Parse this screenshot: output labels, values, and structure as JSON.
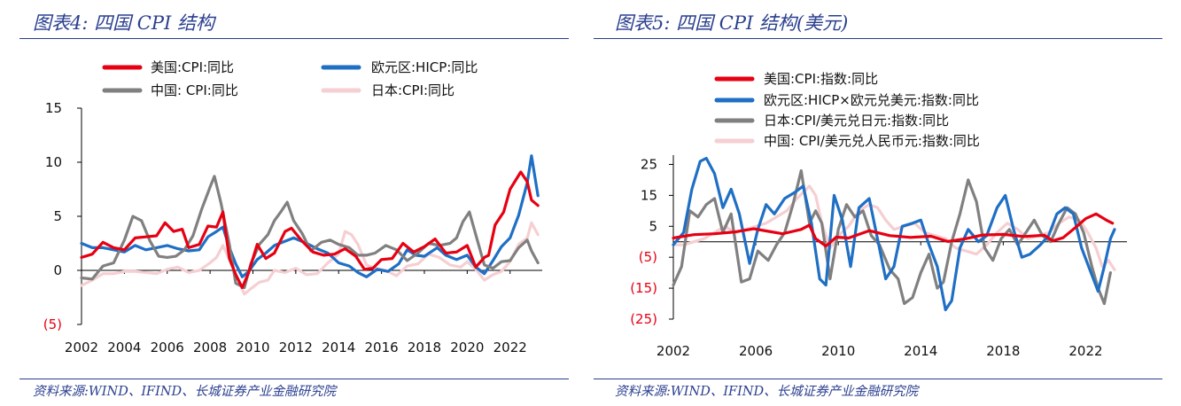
{
  "left_panel": {
    "title": "图表4:  四国 CPI 结构",
    "source": "资料来源:WIND、IFIND、长城证券产业金融研究院"
  },
  "right_panel": {
    "title": "图表5:  四国 CPI 结构(美元)",
    "source": "资料来源:WIND、IFIND、长城证券产业金融研究院"
  },
  "chart_data": [
    {
      "type": "line",
      "title": "",
      "xlabel": "",
      "ylabel": "",
      "xlim": [
        2002,
        2023.5
      ],
      "ylim": [
        -5,
        15
      ],
      "x_ticks": [
        2002,
        2004,
        2006,
        2008,
        2010,
        2012,
        2014,
        2016,
        2018,
        2020,
        2022
      ],
      "y_ticks": [
        15,
        10,
        5,
        0,
        -5
      ],
      "y_tick_labels": [
        "15",
        "10",
        "5",
        "0",
        "(5)"
      ],
      "legend_position": "top, two columns",
      "grid": false,
      "series": [
        {
          "name": "美国:CPI:同比",
          "color": "#e60012",
          "x": [
            2002,
            2002.5,
            2003,
            2003.5,
            2004,
            2004.5,
            2005,
            2005.5,
            2005.9,
            2006.3,
            2006.7,
            2007,
            2007.5,
            2007.9,
            2008.3,
            2008.6,
            2008.9,
            2009.2,
            2009.5,
            2009.8,
            2010.2,
            2010.6,
            2011,
            2011.5,
            2011.8,
            2012.3,
            2012.8,
            2013.3,
            2013.8,
            2014.3,
            2014.8,
            2015.2,
            2015.6,
            2016,
            2016.5,
            2017,
            2017.5,
            2018,
            2018.5,
            2019,
            2019.5,
            2020,
            2020.4,
            2020.8,
            2021,
            2021.3,
            2021.7,
            2022,
            2022.5,
            2022.8,
            2023,
            2023.3
          ],
          "values": [
            1.2,
            1.5,
            2.6,
            2.1,
            1.9,
            3.0,
            3.1,
            3.2,
            4.4,
            3.6,
            3.8,
            2.1,
            2.4,
            4.1,
            4.0,
            5.4,
            1.1,
            -0.4,
            -1.6,
            -0.2,
            2.4,
            1.1,
            1.6,
            3.6,
            3.9,
            2.7,
            1.7,
            1.4,
            1.5,
            2.0,
            1.3,
            0.1,
            0.2,
            1.0,
            1.1,
            2.5,
            1.7,
            2.2,
            2.9,
            1.6,
            1.7,
            2.3,
            0.3,
            1.2,
            1.4,
            4.2,
            5.4,
            7.5,
            9.1,
            8.2,
            6.5,
            6.0
          ]
        },
        {
          "name": "欧元区:HICP:同比",
          "color": "#1f6fc5",
          "x": [
            2002,
            2002.5,
            2003,
            2003.5,
            2004,
            2004.5,
            2005,
            2005.5,
            2006,
            2006.5,
            2007,
            2007.5,
            2007.9,
            2008.3,
            2008.6,
            2008.9,
            2009.2,
            2009.5,
            2009.8,
            2010.2,
            2010.6,
            2011,
            2011.5,
            2011.9,
            2012.5,
            2013,
            2013.5,
            2014,
            2014.5,
            2014.9,
            2015.3,
            2015.8,
            2016.3,
            2016.8,
            2017.2,
            2017.6,
            2018,
            2018.6,
            2019,
            2019.5,
            2020,
            2020.4,
            2020.8,
            2021.2,
            2021.6,
            2022,
            2022.4,
            2022.8,
            2023,
            2023.3
          ],
          "values": [
            2.5,
            2.1,
            2.1,
            1.9,
            1.7,
            2.3,
            1.9,
            2.1,
            2.3,
            2.0,
            1.8,
            1.9,
            3.1,
            3.6,
            4.0,
            2.1,
            0.6,
            -0.6,
            -0.1,
            1.0,
            1.6,
            2.3,
            2.7,
            3.0,
            2.5,
            2.0,
            1.6,
            0.7,
            0.4,
            -0.2,
            -0.6,
            0.1,
            -0.1,
            0.6,
            1.9,
            1.4,
            1.3,
            2.1,
            1.4,
            1.0,
            1.4,
            0.3,
            -0.3,
            0.9,
            2.2,
            3.0,
            5.1,
            8.1,
            10.6,
            6.9
          ]
        },
        {
          "name": "中国: CPI:同比",
          "color": "#808080",
          "x": [
            2002,
            2002.5,
            2003,
            2003.5,
            2004,
            2004.4,
            2004.8,
            2005.2,
            2005.6,
            2006,
            2006.4,
            2006.8,
            2007.2,
            2007.6,
            2008,
            2008.2,
            2008.5,
            2008.9,
            2009.2,
            2009.6,
            2009.9,
            2010.3,
            2010.7,
            2011,
            2011.3,
            2011.6,
            2011.9,
            2012.3,
            2012.7,
            2013.2,
            2013.6,
            2014,
            2014.5,
            2014.9,
            2015.3,
            2015.7,
            2016.2,
            2016.7,
            2017.2,
            2017.7,
            2018.2,
            2018.7,
            2019.2,
            2019.5,
            2019.8,
            2020.1,
            2020.4,
            2020.8,
            2021.2,
            2021.6,
            2022,
            2022.4,
            2022.8,
            2023,
            2023.3
          ],
          "values": [
            -0.7,
            -0.8,
            0.4,
            0.7,
            2.8,
            5.0,
            4.6,
            2.7,
            1.3,
            1.2,
            1.3,
            1.9,
            3.2,
            5.6,
            7.7,
            8.7,
            6.3,
            2.4,
            -1.2,
            -1.6,
            0.6,
            2.4,
            3.3,
            4.6,
            5.4,
            6.3,
            4.6,
            3.4,
            1.8,
            2.6,
            2.8,
            2.4,
            2.1,
            1.4,
            1.4,
            1.6,
            2.3,
            1.9,
            0.9,
            1.6,
            2.5,
            2.3,
            2.5,
            3.0,
            4.5,
            5.4,
            3.3,
            0.5,
            0.2,
            0.8,
            0.9,
            2.1,
            2.8,
            1.8,
            0.7
          ]
        },
        {
          "name": "日本:CPI:同比",
          "color": "#f5cfd2",
          "x": [
            2002,
            2002.5,
            2003,
            2003.5,
            2004,
            2004.5,
            2005,
            2005.5,
            2006,
            2006.5,
            2007,
            2007.5,
            2008,
            2008.3,
            2008.6,
            2008.9,
            2009.2,
            2009.6,
            2009.9,
            2010.3,
            2010.7,
            2011,
            2011.5,
            2012,
            2012.5,
            2013,
            2013.5,
            2014,
            2014.3,
            2014.6,
            2014.9,
            2015.3,
            2015.7,
            2016.2,
            2016.7,
            2017.2,
            2017.7,
            2018.2,
            2018.7,
            2019.2,
            2019.7,
            2020,
            2020.4,
            2020.8,
            2021.2,
            2021.6,
            2022,
            2022.4,
            2022.8,
            2023,
            2023.3
          ],
          "values": [
            -1.4,
            -0.9,
            -0.3,
            -0.3,
            -0.1,
            -0.1,
            -0.2,
            -0.3,
            0.1,
            0.3,
            -0.2,
            0.0,
            0.7,
            1.2,
            2.3,
            1.0,
            -0.3,
            -2.2,
            -1.7,
            -1.1,
            -0.9,
            0.0,
            -0.2,
            0.2,
            -0.4,
            -0.3,
            0.7,
            1.5,
            3.6,
            3.3,
            2.4,
            0.5,
            0.2,
            0.0,
            -0.5,
            0.4,
            0.6,
            1.5,
            1.2,
            0.5,
            0.3,
            0.8,
            0.1,
            -0.9,
            -0.4,
            -0.1,
            0.8,
            2.4,
            3.0,
            4.4,
            3.3
          ]
        }
      ]
    },
    {
      "type": "line",
      "title": "",
      "xlabel": "",
      "ylabel": "",
      "xlim": [
        2002,
        2024
      ],
      "ylim": [
        -25,
        28
      ],
      "x_ticks": [
        2002,
        2006,
        2010,
        2014,
        2018,
        2022
      ],
      "y_ticks": [
        25,
        15,
        5,
        -5,
        -15,
        -25
      ],
      "y_tick_labels": [
        "25",
        "15",
        "5",
        "(5)",
        "(15)",
        "(25)"
      ],
      "zero_line": true,
      "legend_position": "top, one column",
      "grid": false,
      "series": [
        {
          "name": "美国:CPI:指数:同比",
          "color": "#e60012",
          "x": [
            2002,
            2003,
            2004,
            2005,
            2005.9,
            2006.5,
            2007.3,
            2008.2,
            2008.6,
            2008.9,
            2009.4,
            2009.9,
            2010.5,
            2011.5,
            2012.5,
            2013.5,
            2014.5,
            2015.3,
            2016.2,
            2017,
            2018,
            2019,
            2020,
            2020.4,
            2020.9,
            2021.5,
            2022,
            2022.5,
            2023,
            2023.3
          ],
          "values": [
            1.2,
            2.3,
            2.6,
            3.2,
            4.2,
            3.5,
            2.6,
            4.0,
            5.4,
            1.0,
            -1.4,
            1.5,
            1.2,
            3.6,
            2.0,
            1.4,
            1.8,
            0.1,
            1.0,
            2.2,
            2.4,
            1.7,
            2.1,
            0.3,
            1.3,
            4.6,
            7.5,
            9.0,
            7.0,
            6.0
          ]
        },
        {
          "name": "欧元区:HICP×欧元兑美元:指数:同比",
          "color": "#1f6fc5",
          "x": [
            2002,
            2002.5,
            2002.9,
            2003.3,
            2003.6,
            2004,
            2004.4,
            2004.8,
            2005.2,
            2005.7,
            2006.1,
            2006.5,
            2006.9,
            2007.4,
            2007.9,
            2008.3,
            2008.7,
            2009.1,
            2009.4,
            2009.8,
            2010.2,
            2010.6,
            2011,
            2011.5,
            2011.9,
            2012.3,
            2012.7,
            2013.1,
            2013.6,
            2014,
            2014.4,
            2014.8,
            2015.2,
            2015.5,
            2015.9,
            2016.3,
            2016.8,
            2017.2,
            2017.7,
            2018.1,
            2018.5,
            2018.9,
            2019.3,
            2019.8,
            2020.2,
            2020.6,
            2021,
            2021.4,
            2021.8,
            2022.2,
            2022.6,
            2022.9,
            2023.2,
            2023.4
          ],
          "values": [
            -1,
            3,
            17,
            26,
            27,
            22,
            11,
            17,
            9,
            -7,
            4,
            12,
            9,
            14,
            16,
            18,
            6,
            -12,
            -14,
            15,
            7,
            -8,
            11,
            14,
            1,
            -12,
            -8,
            5,
            6,
            7,
            -1,
            -8,
            -22,
            -19,
            -2,
            4,
            0,
            2,
            11,
            15,
            4,
            -5,
            -4,
            -1,
            2,
            9,
            11,
            9,
            -2,
            -9,
            -16,
            -8,
            1,
            4
          ]
        },
        {
          "name": "日本:CPI/美元兑日元:指数:同比",
          "color": "#808080",
          "x": [
            2002,
            2002.4,
            2002.8,
            2003.2,
            2003.6,
            2004,
            2004.4,
            2004.8,
            2005.3,
            2005.7,
            2006.1,
            2006.6,
            2007,
            2007.4,
            2007.8,
            2008.2,
            2008.6,
            2008.9,
            2009.2,
            2009.6,
            2010,
            2010.4,
            2010.8,
            2011.2,
            2011.6,
            2012,
            2012.5,
            2012.9,
            2013.2,
            2013.6,
            2014,
            2014.4,
            2014.8,
            2015.1,
            2015.5,
            2015.9,
            2016.3,
            2016.7,
            2017.1,
            2017.5,
            2017.9,
            2018.3,
            2018.7,
            2019.1,
            2019.5,
            2019.9,
            2020.3,
            2020.7,
            2021.1,
            2021.5,
            2021.9,
            2022.3,
            2022.6,
            2022.9,
            2023.2
          ],
          "values": [
            -14,
            -8,
            10,
            8,
            12,
            14,
            3,
            9,
            -13,
            -12,
            -3,
            -6,
            -1,
            3,
            12,
            23,
            6,
            10,
            6,
            -12,
            4,
            12,
            8,
            10,
            2,
            -1,
            -9,
            -12,
            -20,
            -18,
            -10,
            -4,
            -15,
            -13,
            0,
            9,
            20,
            13,
            -2,
            -6,
            1,
            4,
            -1,
            3,
            7,
            2,
            0,
            6,
            11,
            9,
            3,
            -8,
            -15,
            -20,
            -10
          ]
        },
        {
          "name": "中国: CPI/美元兑人民币元:指数:同比",
          "color": "#f5cfd2",
          "x": [
            2002,
            2002.5,
            2003,
            2003.5,
            2004,
            2004.5,
            2005,
            2005.5,
            2006,
            2006.5,
            2007,
            2007.5,
            2008,
            2008.3,
            2008.6,
            2008.9,
            2009.2,
            2009.6,
            2010,
            2010.5,
            2011,
            2011.5,
            2011.9,
            2012.3,
            2012.7,
            2013.2,
            2013.7,
            2014.2,
            2014.7,
            2015.2,
            2015.7,
            2016.2,
            2016.7,
            2017.2,
            2017.7,
            2018.2,
            2018.7,
            2019.2,
            2019.7,
            2020.2,
            2020.7,
            2021.2,
            2021.7,
            2022.1,
            2022.5,
            2022.8,
            2023.1,
            2023.4
          ],
          "values": [
            -1,
            -1,
            0,
            1,
            3,
            5,
            3,
            4,
            5,
            6,
            8,
            10,
            14,
            16,
            18,
            15,
            6,
            -2,
            2,
            5,
            10,
            12,
            11,
            7,
            4,
            5,
            6,
            3,
            2,
            1,
            -2,
            -3,
            -4,
            -1,
            3,
            6,
            4,
            1,
            2,
            3,
            6,
            8,
            7,
            3,
            -2,
            -8,
            -6,
            -9
          ]
        }
      ]
    }
  ]
}
